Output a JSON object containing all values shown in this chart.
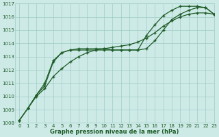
{
  "x": [
    0,
    1,
    2,
    3,
    4,
    5,
    6,
    7,
    8,
    9,
    10,
    11,
    12,
    13,
    14,
    15,
    16,
    17,
    18,
    19,
    20,
    21,
    22,
    23
  ],
  "line1": [
    1008.2,
    1009.1,
    1010.0,
    1010.6,
    1011.5,
    1012.1,
    1012.6,
    1013.0,
    1013.3,
    1013.5,
    1013.6,
    1013.7,
    1013.8,
    1013.9,
    1014.1,
    1014.4,
    1014.8,
    1015.3,
    1015.7,
    1016.0,
    1016.2,
    1016.3,
    1016.3,
    1016.2
  ],
  "line2": [
    1008.2,
    1009.1,
    1010.1,
    1010.8,
    1012.6,
    1013.3,
    1013.5,
    1013.5,
    1013.5,
    1013.5,
    1013.5,
    1013.5,
    1013.5,
    1013.5,
    1013.5,
    1013.6,
    1014.2,
    1015.0,
    1015.8,
    1016.2,
    1016.5,
    1016.7,
    1016.7,
    1016.2
  ],
  "line3": [
    1008.2,
    1009.1,
    1010.1,
    1011.0,
    1012.7,
    1013.3,
    1013.5,
    1013.6,
    1013.6,
    1013.6,
    1013.6,
    1013.5,
    1013.5,
    1013.5,
    1013.5,
    1014.6,
    1015.4,
    1016.1,
    1016.5,
    1016.8,
    1016.8,
    1016.8,
    1016.7,
    1016.2
  ],
  "background_color": "#ceeae7",
  "grid_color": "#9eccc7",
  "line_color": "#1e5c28",
  "xlabel": "Graphe pression niveau de la mer (hPa)",
  "ylim": [
    1008,
    1017
  ],
  "xlim": [
    -0.5,
    23
  ],
  "yticks": [
    1008,
    1009,
    1010,
    1011,
    1012,
    1013,
    1014,
    1015,
    1016,
    1017
  ],
  "xticks": [
    0,
    1,
    2,
    3,
    4,
    5,
    6,
    7,
    8,
    9,
    10,
    11,
    12,
    13,
    14,
    15,
    16,
    17,
    18,
    19,
    20,
    21,
    22,
    23
  ],
  "marker": "+",
  "markersize": 3.5,
  "linewidth": 0.9
}
